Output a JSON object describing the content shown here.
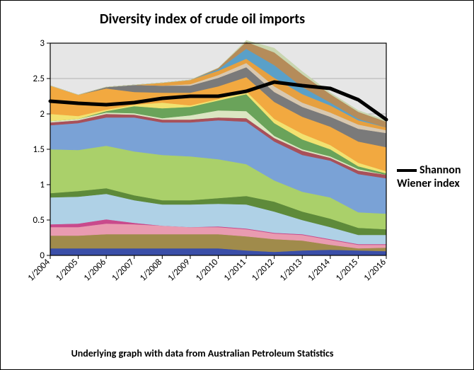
{
  "chart": {
    "type": "stacked-area-with-line",
    "title": "Diversity index of crude oil imports",
    "title_fontsize": 20,
    "footnote": "Underlying graph with data from Australian Petroleum Statistics",
    "footnote_fontsize": 14,
    "plot_background_color": "#e6e6e6",
    "page_background_color": "#ffffff",
    "border_color": "#000000",
    "grid_color": "#b3b3b3",
    "ylim": [
      0,
      3
    ],
    "ytick_step": 0.5,
    "xticks": [
      "1/2004",
      "1/2005",
      "1/2006",
      "1/2007",
      "1/2008",
      "1/2009",
      "1/2010",
      "1/2011",
      "1/2012",
      "1/2013",
      "1/2014",
      "1/2015",
      "1/2016"
    ],
    "xtick_rotation_deg": -45,
    "xtick_fontsize": 13,
    "ytick_fontsize": 13,
    "legend": {
      "label": "Shannon Wiener index",
      "color": "#000000",
      "line_width": 4,
      "fontsize": 16
    },
    "area_series_bottom_to_top": [
      {
        "name": "s01",
        "color": "#3a4ea8",
        "values": [
          0.1,
          0.1,
          0.1,
          0.1,
          0.1,
          0.1,
          0.1,
          0.07,
          0.05,
          0.07,
          0.08,
          0.07,
          0.06
        ]
      },
      {
        "name": "s02",
        "color": "#a08b4b",
        "values": [
          0.18,
          0.18,
          0.2,
          0.2,
          0.2,
          0.2,
          0.2,
          0.2,
          0.18,
          0.14,
          0.07,
          0.03,
          0.05
        ]
      },
      {
        "name": "s03",
        "color": "#e99bb0",
        "values": [
          0.12,
          0.12,
          0.15,
          0.14,
          0.12,
          0.1,
          0.1,
          0.1,
          0.08,
          0.08,
          0.07,
          0.05,
          0.04
        ]
      },
      {
        "name": "s04",
        "color": "#c94a8c",
        "values": [
          0.04,
          0.05,
          0.06,
          0.02,
          0.0,
          0.0,
          0.01,
          0.01,
          0.01,
          0.01,
          0.01,
          0.01,
          0.01
        ]
      },
      {
        "name": "s05",
        "color": "#afd1e6",
        "values": [
          0.38,
          0.38,
          0.36,
          0.32,
          0.3,
          0.32,
          0.32,
          0.34,
          0.3,
          0.2,
          0.17,
          0.13,
          0.13
        ]
      },
      {
        "name": "s06",
        "color": "#5e8a3a",
        "values": [
          0.06,
          0.08,
          0.08,
          0.07,
          0.06,
          0.06,
          0.08,
          0.12,
          0.14,
          0.12,
          0.12,
          0.1,
          0.08
        ]
      },
      {
        "name": "s07",
        "color": "#aad06a",
        "values": [
          0.62,
          0.58,
          0.6,
          0.62,
          0.64,
          0.62,
          0.55,
          0.45,
          0.3,
          0.28,
          0.3,
          0.22,
          0.22
        ]
      },
      {
        "name": "s08",
        "color": "#7aa2d6",
        "values": [
          0.34,
          0.38,
          0.4,
          0.48,
          0.46,
          0.48,
          0.55,
          0.6,
          0.55,
          0.52,
          0.52,
          0.54,
          0.5
        ]
      },
      {
        "name": "s09",
        "color": "#a8505a",
        "values": [
          0.04,
          0.04,
          0.05,
          0.04,
          0.04,
          0.04,
          0.04,
          0.05,
          0.05,
          0.06,
          0.04,
          0.05,
          0.05
        ]
      },
      {
        "name": "s10",
        "color": "#dbe6c2",
        "values": [
          0.02,
          0.02,
          0.02,
          0.02,
          0.02,
          0.06,
          0.1,
          0.1,
          0.03,
          0.02,
          0.02,
          0.02,
          0.0
        ]
      },
      {
        "name": "s11",
        "color": "#6aa35a",
        "values": [
          0.0,
          0.0,
          0.02,
          0.1,
          0.14,
          0.12,
          0.14,
          0.24,
          0.18,
          0.14,
          0.1,
          0.04,
          0.02
        ]
      },
      {
        "name": "s12",
        "color": "#f2e270",
        "values": [
          0.1,
          0.04,
          0.02,
          0.02,
          0.08,
          0.02,
          0.02,
          0.04,
          0.06,
          0.08,
          0.06,
          0.05,
          0.03
        ]
      },
      {
        "name": "s13",
        "color": "#f2a940",
        "values": [
          0.4,
          0.3,
          0.3,
          0.18,
          0.14,
          0.18,
          0.18,
          0.2,
          0.24,
          0.24,
          0.26,
          0.3,
          0.34
        ]
      },
      {
        "name": "s14",
        "color": "#7a7a7a",
        "values": [
          0.0,
          0.0,
          0.02,
          0.1,
          0.1,
          0.1,
          0.12,
          0.14,
          0.14,
          0.14,
          0.14,
          0.18,
          0.2
        ]
      },
      {
        "name": "s15",
        "color": "#d8c8b0",
        "values": [
          0.0,
          0.0,
          0.0,
          0.0,
          0.0,
          0.02,
          0.04,
          0.06,
          0.08,
          0.06,
          0.06,
          0.06,
          0.04
        ]
      },
      {
        "name": "s16",
        "color": "#e6a040",
        "values": [
          0.0,
          0.0,
          0.0,
          0.0,
          0.04,
          0.06,
          0.06,
          0.06,
          0.12,
          0.12,
          0.1,
          0.06,
          0.04
        ]
      },
      {
        "name": "s17",
        "color": "#5aa0c8",
        "values": [
          0.0,
          0.0,
          0.0,
          0.0,
          0.0,
          0.0,
          0.02,
          0.14,
          0.18,
          0.1,
          0.04,
          0.02,
          0.0
        ]
      },
      {
        "name": "s18",
        "color": "#b58c5a",
        "values": [
          0.0,
          0.0,
          0.0,
          0.0,
          0.0,
          0.0,
          0.02,
          0.1,
          0.18,
          0.18,
          0.12,
          0.1,
          0.08
        ]
      },
      {
        "name": "s19",
        "color": "#c9d6b0",
        "values": [
          0.0,
          0.0,
          0.0,
          0.0,
          0.0,
          0.0,
          0.0,
          0.02,
          0.06,
          0.04,
          0.02,
          0.02,
          0.02
        ]
      }
    ],
    "index_line": {
      "name": "Shannon Wiener index",
      "color": "#000000",
      "width": 5,
      "values": [
        2.18,
        2.15,
        2.13,
        2.16,
        2.22,
        2.25,
        2.25,
        2.32,
        2.45,
        2.4,
        2.36,
        2.2,
        1.92
      ]
    }
  }
}
